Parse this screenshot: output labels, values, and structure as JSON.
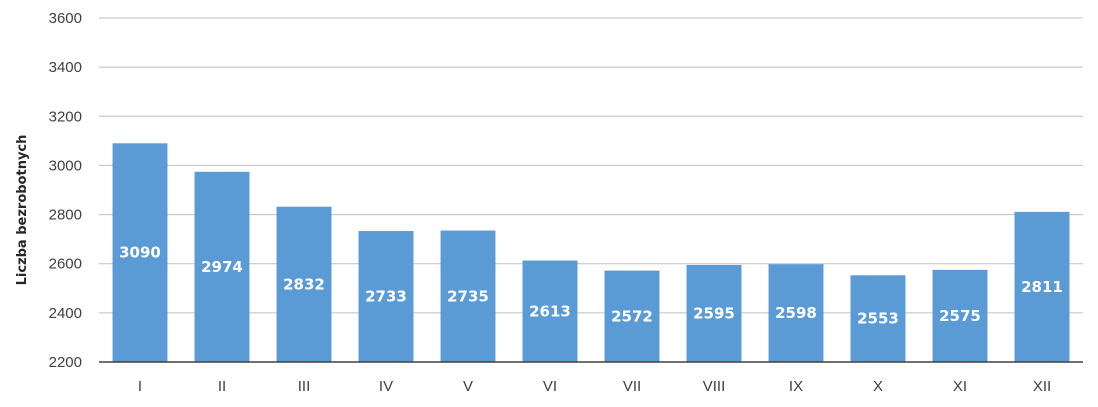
{
  "chart_data": {
    "type": "bar",
    "title": "",
    "xlabel": "",
    "ylabel": "Liczba bezrobotnych",
    "categories": [
      "I",
      "II",
      "III",
      "IV",
      "V",
      "VI",
      "VII",
      "VIII",
      "IX",
      "X",
      "XI",
      "XII"
    ],
    "values": [
      3090,
      2974,
      2832,
      2733,
      2735,
      2613,
      2572,
      2595,
      2598,
      2553,
      2575,
      2811
    ],
    "ylim": [
      2200,
      3600
    ],
    "yticks": [
      2200,
      2400,
      2600,
      2800,
      3000,
      3200,
      3400,
      3600
    ],
    "grid": true,
    "legend": "none",
    "bar_color": "#5b9bd5",
    "data_labels": true
  }
}
